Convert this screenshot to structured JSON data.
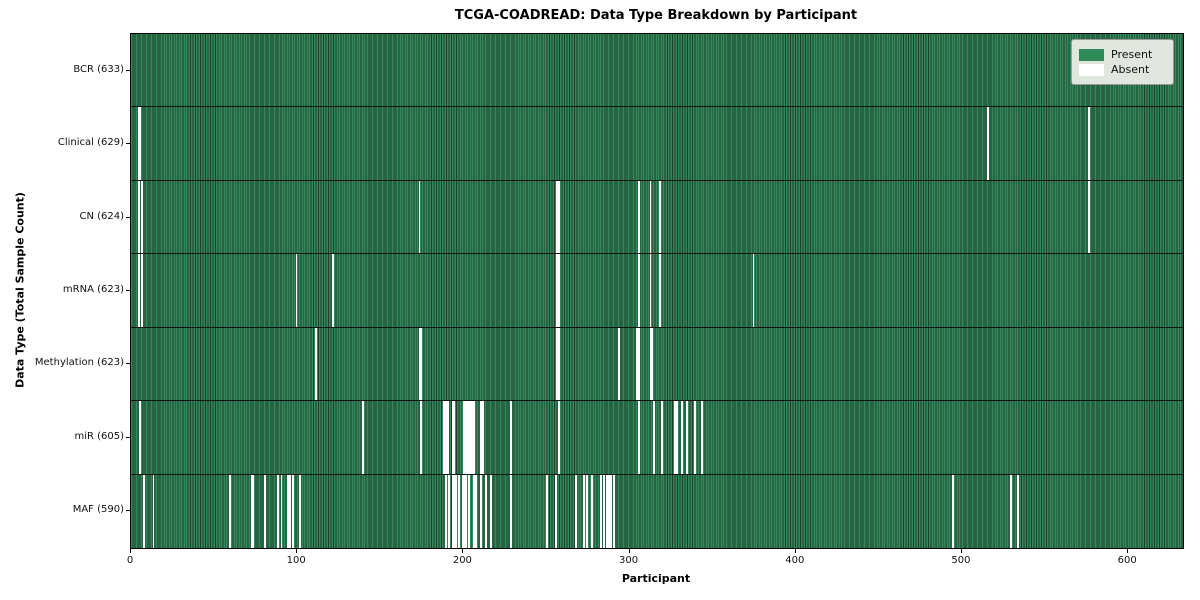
{
  "chart_data": {
    "type": "heatmap",
    "title": "TCGA-COADREAD: Data Type Breakdown by Participant",
    "xlabel": "Participant",
    "ylabel": "Data Type (Total Sample Count)",
    "n_participants": 633,
    "x_ticks": [
      0,
      100,
      200,
      300,
      400,
      500,
      600
    ],
    "legend": {
      "position": "upper right",
      "entries": [
        {
          "label": "Present",
          "color": "#2f8a5a"
        },
        {
          "label": "Absent",
          "color": "#ffffff"
        }
      ]
    },
    "colors": {
      "present_fill": "#2f8a5a",
      "cell_edge": "#16402a",
      "absent_fill": "#ffffff"
    },
    "rows": [
      {
        "label": "BCR (633)",
        "data_type": "BCR",
        "present_count": 633,
        "absent_participants": []
      },
      {
        "label": "Clinical (629)",
        "data_type": "Clinical",
        "present_count": 629,
        "absent_participants": [
          4,
          5,
          515,
          576
        ]
      },
      {
        "label": "CN (624)",
        "data_type": "CN",
        "present_count": 624,
        "absent_participants": [
          4,
          6,
          173,
          256,
          257,
          305,
          312,
          318,
          576
        ]
      },
      {
        "label": "mRNA (623)",
        "data_type": "mRNA",
        "present_count": 623,
        "absent_participants": [
          4,
          6,
          99,
          121,
          256,
          257,
          305,
          312,
          318,
          374
        ]
      },
      {
        "label": "Methylation (623)",
        "data_type": "Methylation",
        "present_count": 623,
        "absent_participants": [
          111,
          173,
          174,
          256,
          257,
          293,
          304,
          305,
          312,
          313
        ]
      },
      {
        "label": "miR (605)",
        "data_type": "miR",
        "present_count": 605,
        "absent_participants": [
          5,
          139,
          174,
          188,
          189,
          190,
          193,
          194,
          200,
          201,
          202,
          203,
          204,
          205,
          206,
          210,
          211,
          228,
          257,
          305,
          314,
          319,
          327,
          328,
          331,
          334,
          339,
          343
        ]
      },
      {
        "label": "MAF (590)",
        "data_type": "MAF",
        "present_count": 590,
        "absent_participants": [
          7,
          13,
          59,
          72,
          73,
          80,
          88,
          90,
          94,
          95,
          97,
          101,
          189,
          191,
          193,
          194,
          195,
          197,
          199,
          200,
          201,
          203,
          206,
          207,
          210,
          213,
          216,
          228,
          250,
          255,
          267,
          272,
          274,
          277,
          282,
          284,
          286,
          287,
          288,
          290,
          494,
          529,
          533
        ]
      }
    ]
  }
}
